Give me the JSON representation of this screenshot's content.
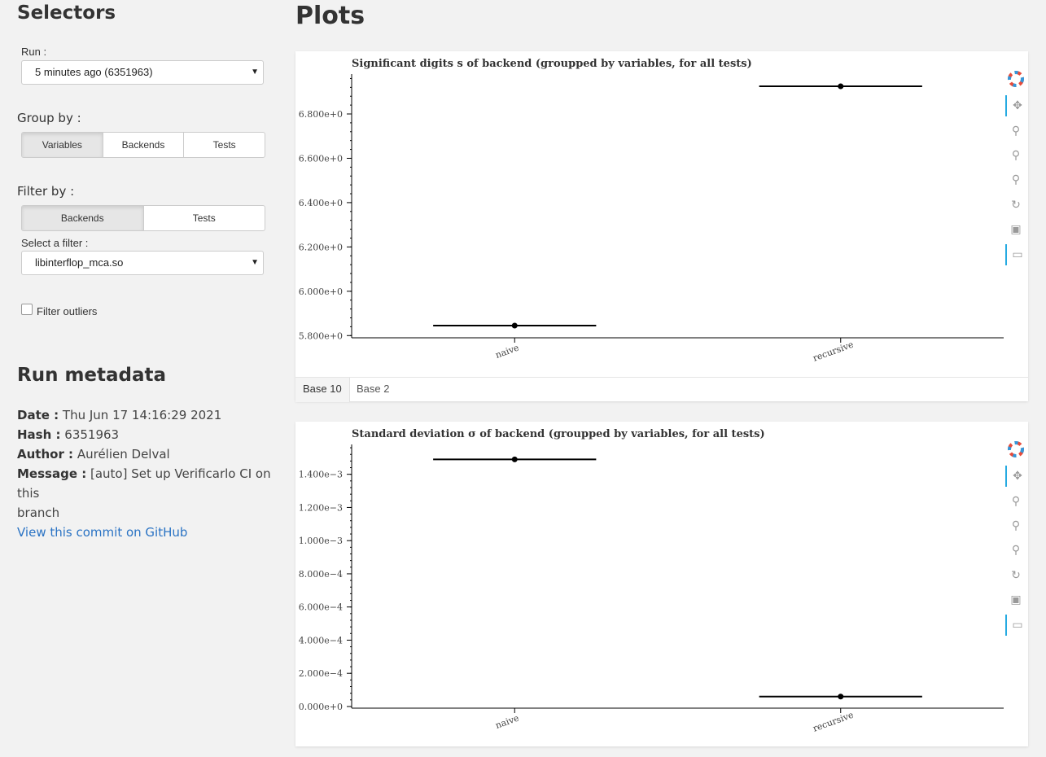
{
  "sidebar": {
    "title": "Selectors",
    "run_label": "Run :",
    "run_value": "5 minutes ago (6351963)",
    "groupby_label": "Group by :",
    "groupby_options": [
      "Variables",
      "Backends",
      "Tests"
    ],
    "groupby_active": "Variables",
    "filterby_label": "Filter by :",
    "filterby_options": [
      "Backends",
      "Tests"
    ],
    "filterby_active": "Backends",
    "select_filter_label": "Select a filter :",
    "select_filter_value": "libinterflop_mca.so",
    "filter_outliers_label": "Filter outliers",
    "filter_outliers_checked": false
  },
  "metadata": {
    "title": "Run metadata",
    "date_label": "Date :",
    "date_value": "Thu Jun 17 14:16:29 2021",
    "hash_label": "Hash :",
    "hash_value": "6351963",
    "author_label": "Author :",
    "author_value": "Aurélien Delval",
    "message_label": "Message :",
    "message_value_line1": "[auto] Set up Verificarlo CI on this",
    "message_value_line2": "branch",
    "github_link": "View this commit on GitHub"
  },
  "main": {
    "title": "Plots",
    "tabs": [
      "Base 10",
      "Base 2"
    ],
    "active_tab": "Base 10"
  },
  "toolbar_icons": [
    "bokeh-logo-icon",
    "pan-icon",
    "box-zoom-icon",
    "wheel-zoom-icon",
    "zoom-icon",
    "reset-icon",
    "save-icon",
    "hover-icon"
  ],
  "chart_data": [
    {
      "type": "scatter",
      "title": "Significant digits s of backend (groupped by variables, for all tests)",
      "categories": [
        "naive",
        "recursive"
      ],
      "values": [
        5.845,
        6.925
      ],
      "ylim": [
        5.79,
        6.98
      ],
      "yticks": [
        5.8,
        6.0,
        6.2,
        6.4,
        6.6,
        6.8
      ],
      "ytick_labels": [
        "5.800e+0",
        "6.000e+0",
        "6.200e+0",
        "6.400e+0",
        "6.600e+0",
        "6.800e+0"
      ],
      "xlabel": "",
      "ylabel": "",
      "grid": false,
      "marker_color": "#000000"
    },
    {
      "type": "scatter",
      "title": "Standard deviation σ of backend (groupped by variables, for all tests)",
      "categories": [
        "naive",
        "recursive"
      ],
      "values": [
        0.00149,
        6e-05
      ],
      "ylim": [
        -1e-05,
        0.00158
      ],
      "yticks": [
        0,
        0.0002,
        0.0004,
        0.0006,
        0.0008,
        0.001,
        0.0012,
        0.0014
      ],
      "ytick_labels": [
        "0.000e+0",
        "2.000e−4",
        "4.000e−4",
        "6.000e−4",
        "8.000e−4",
        "1.000e−3",
        "1.200e−3",
        "1.400e−3"
      ],
      "xlabel": "",
      "ylabel": "",
      "grid": false,
      "marker_color": "#000000"
    }
  ]
}
